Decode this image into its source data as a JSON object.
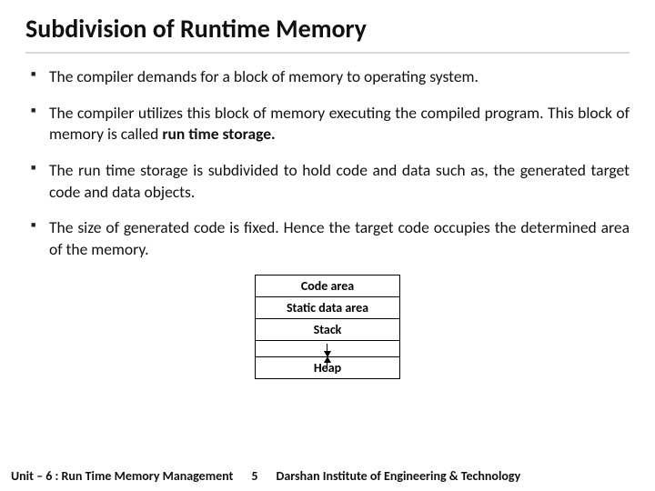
{
  "title": "Subdivision of Runtime Memory",
  "bullets": {
    "b1": "The compiler demands for a block of memory to operating system.",
    "b2a": "The compiler utilizes this block of memory executing the compiled program. This block of memory is called ",
    "b2b": "run time storage.",
    "b3": "The run time storage is subdivided to hold code and data such as, the generated target code and data objects.",
    "b4": "The size of generated code is fixed. Hence the target code occupies the determined area of the memory."
  },
  "diagram": {
    "r1": "Code area",
    "r2": "Static data area",
    "r3": "Stack",
    "r4": "Heap",
    "border_color": "#000000",
    "cell_fontsize": 14
  },
  "footer": {
    "left": "Unit – 6 : Run Time Memory Management",
    "page": "5",
    "right": "Darshan Institute of Engineering & Technology"
  },
  "style": {
    "title_fontsize": 28,
    "body_fontsize": 17.5,
    "footer_fontsize": 14,
    "underline_color": "#d9d9d9",
    "text_color": "#111111",
    "bg_color": "#ffffff"
  }
}
